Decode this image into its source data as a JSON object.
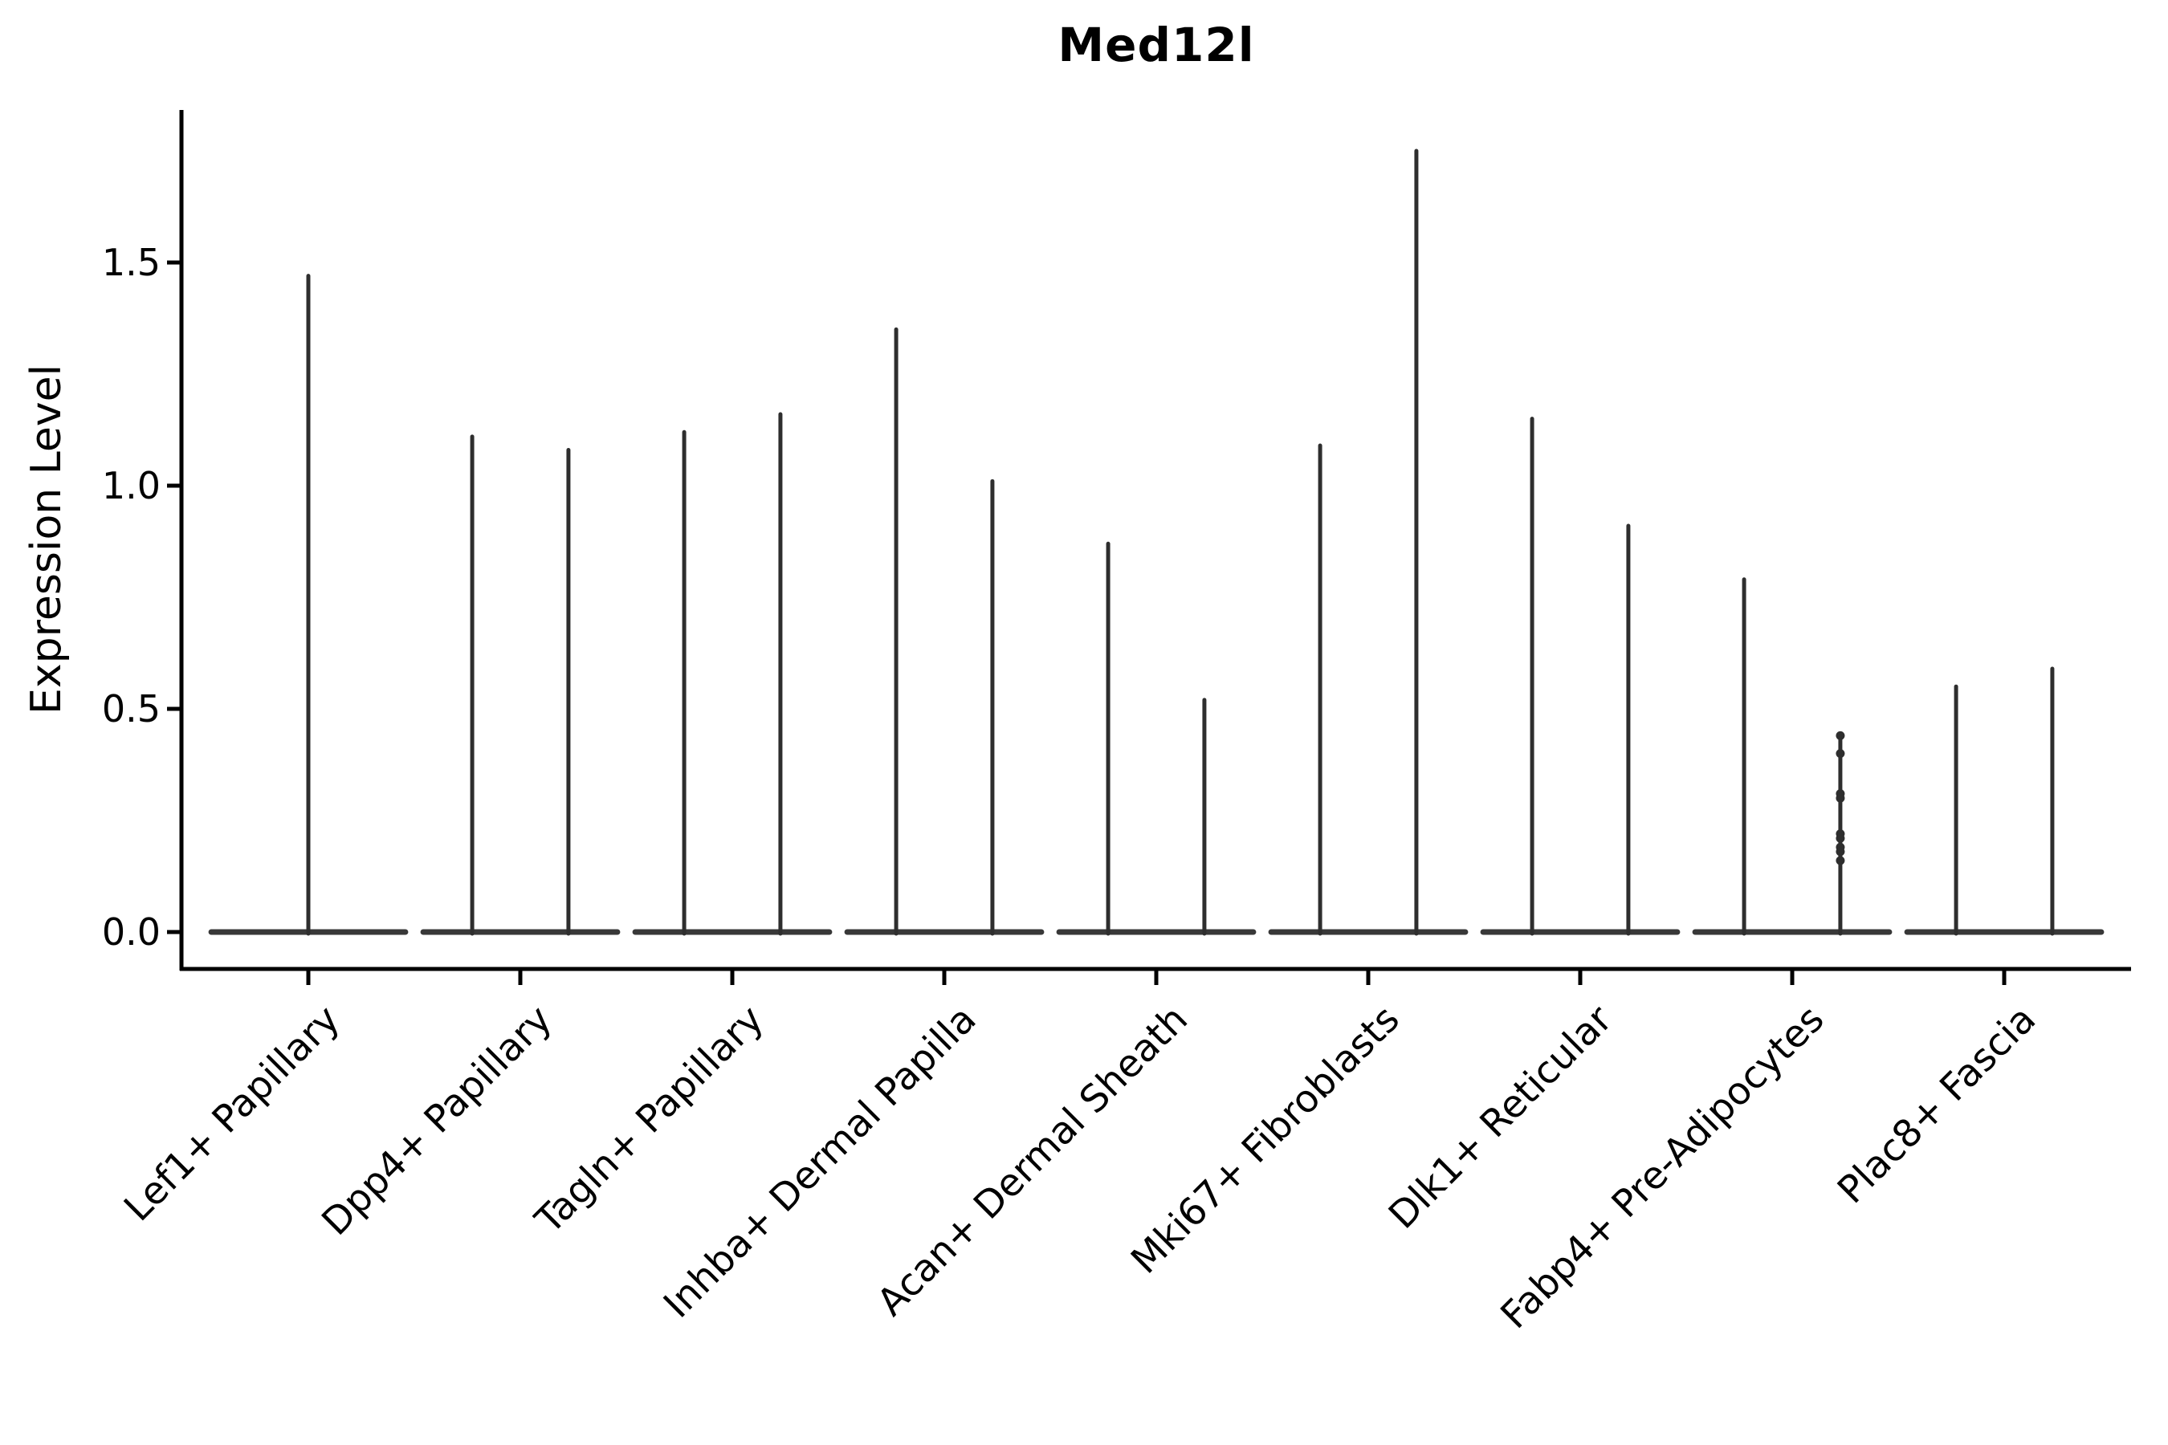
{
  "chart_data": {
    "type": "violin",
    "title": "Med12l",
    "ylabel": "Expression Level",
    "xlabel": "",
    "grid": false,
    "legend_position": "none",
    "background_color": "#ffffff",
    "axis_color": "#000000",
    "violin_color": "#2e2e2e",
    "ylim": [
      -0.09,
      1.84
    ],
    "ytick_labels": [
      "0.0",
      "0.5",
      "1.0",
      "1.5"
    ],
    "ytick_values": [
      0.0,
      0.5,
      1.0,
      1.5
    ],
    "categories": [
      "Lef1+ Papillary",
      "Dpp4+ Papillary",
      "Tagln+ Papillary",
      "Inhba+ Dermal Papilla",
      "Acan+ Dermal Sheath",
      "Mki67+ Fibroblasts",
      "Dlk1+ Reticular",
      "Fabp4+ Pre-Adipocytes",
      "Plac8+ Fascia"
    ],
    "violin_groups": [
      {
        "category": "Lef1+ Papillary",
        "base_halfwidth": 0.458,
        "spikes": [
          {
            "dx": 0.0,
            "max": 1.47
          }
        ]
      },
      {
        "category": "Dpp4+ Papillary",
        "base_halfwidth": 0.458,
        "spikes": [
          {
            "dx": -0.227,
            "max": 1.11
          },
          {
            "dx": 0.227,
            "max": 1.08
          }
        ]
      },
      {
        "category": "Tagln+ Papillary",
        "base_halfwidth": 0.458,
        "spikes": [
          {
            "dx": -0.227,
            "max": 1.12
          },
          {
            "dx": 0.227,
            "max": 1.16
          }
        ]
      },
      {
        "category": "Inhba+ Dermal Papilla",
        "base_halfwidth": 0.458,
        "spikes": [
          {
            "dx": -0.227,
            "max": 1.35
          },
          {
            "dx": 0.227,
            "max": 1.01
          }
        ]
      },
      {
        "category": "Acan+ Dermal Sheath",
        "base_halfwidth": 0.458,
        "spikes": [
          {
            "dx": -0.227,
            "max": 0.87
          },
          {
            "dx": 0.227,
            "max": 0.52
          }
        ]
      },
      {
        "category": "Mki67+ Fibroblasts",
        "base_halfwidth": 0.458,
        "spikes": [
          {
            "dx": -0.227,
            "max": 1.09
          },
          {
            "dx": 0.227,
            "max": 1.75
          }
        ]
      },
      {
        "category": "Dlk1+ Reticular",
        "base_halfwidth": 0.458,
        "spikes": [
          {
            "dx": -0.227,
            "max": 1.15
          },
          {
            "dx": 0.227,
            "max": 0.91
          }
        ]
      },
      {
        "category": "Fabp4+ Pre-Adipocytes",
        "base_halfwidth": 0.458,
        "spikes": [
          {
            "dx": -0.227,
            "max": 0.79
          },
          {
            "dx": 0.227,
            "max": 0.44,
            "points": [
              0.44,
              0.4,
              0.31,
              0.3,
              0.22,
              0.21,
              0.19,
              0.18,
              0.16
            ]
          }
        ]
      },
      {
        "category": "Plac8+ Fascia",
        "base_halfwidth": 0.458,
        "spikes": [
          {
            "dx": -0.227,
            "max": 0.55
          },
          {
            "dx": 0.227,
            "max": 0.59
          }
        ]
      }
    ]
  }
}
